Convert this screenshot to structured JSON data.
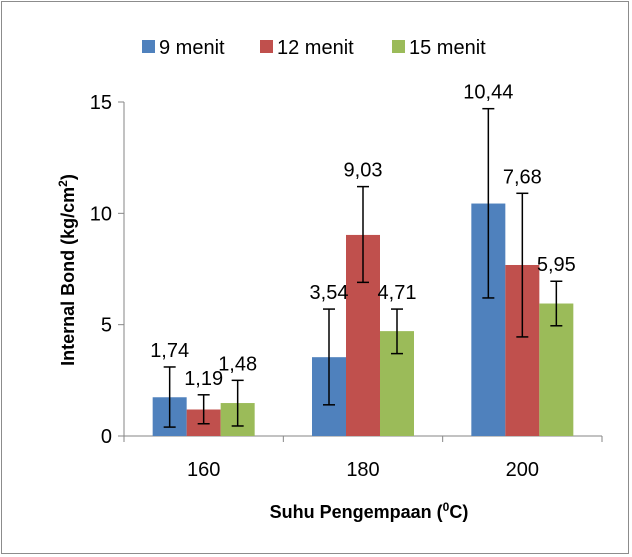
{
  "chart_data": {
    "type": "bar",
    "categories": [
      "160",
      "180",
      "200"
    ],
    "series": [
      {
        "name": "9 menit",
        "color": "#4f81bd",
        "values": [
          1.74,
          3.54,
          10.44
        ],
        "labels": [
          "1,74",
          "3,54",
          "10,44"
        ],
        "error_low": [
          0.4,
          1.4,
          6.2
        ],
        "error_high": [
          3.1,
          5.7,
          14.7
        ]
      },
      {
        "name": "12 menit",
        "color": "#c0504d",
        "values": [
          1.19,
          9.03,
          7.68
        ],
        "labels": [
          "1,19",
          "9,03",
          "7,68"
        ],
        "error_low": [
          0.55,
          6.9,
          4.45
        ],
        "error_high": [
          1.85,
          11.2,
          10.9
        ]
      },
      {
        "name": "15 menit",
        "color": "#9bbb59",
        "values": [
          1.48,
          4.71,
          5.95
        ],
        "labels": [
          "1,48",
          "4,71",
          "5,95"
        ],
        "error_low": [
          0.45,
          3.7,
          4.95
        ],
        "error_high": [
          2.5,
          5.7,
          6.95
        ]
      }
    ],
    "xlabel": "Suhu Pengempaan (",
    "xlabel_sup": "0",
    "xlabel_end": "C)",
    "ylabel": "Internal Bond (kg/cm",
    "ylabel_sup": "2",
    "ylabel_end": ")",
    "ylim": [
      0,
      15
    ],
    "yticks": [
      "0",
      "5",
      "10",
      "15"
    ],
    "ytick_values": [
      0,
      5,
      10,
      15
    ],
    "grid": false,
    "legend_position": "top"
  }
}
